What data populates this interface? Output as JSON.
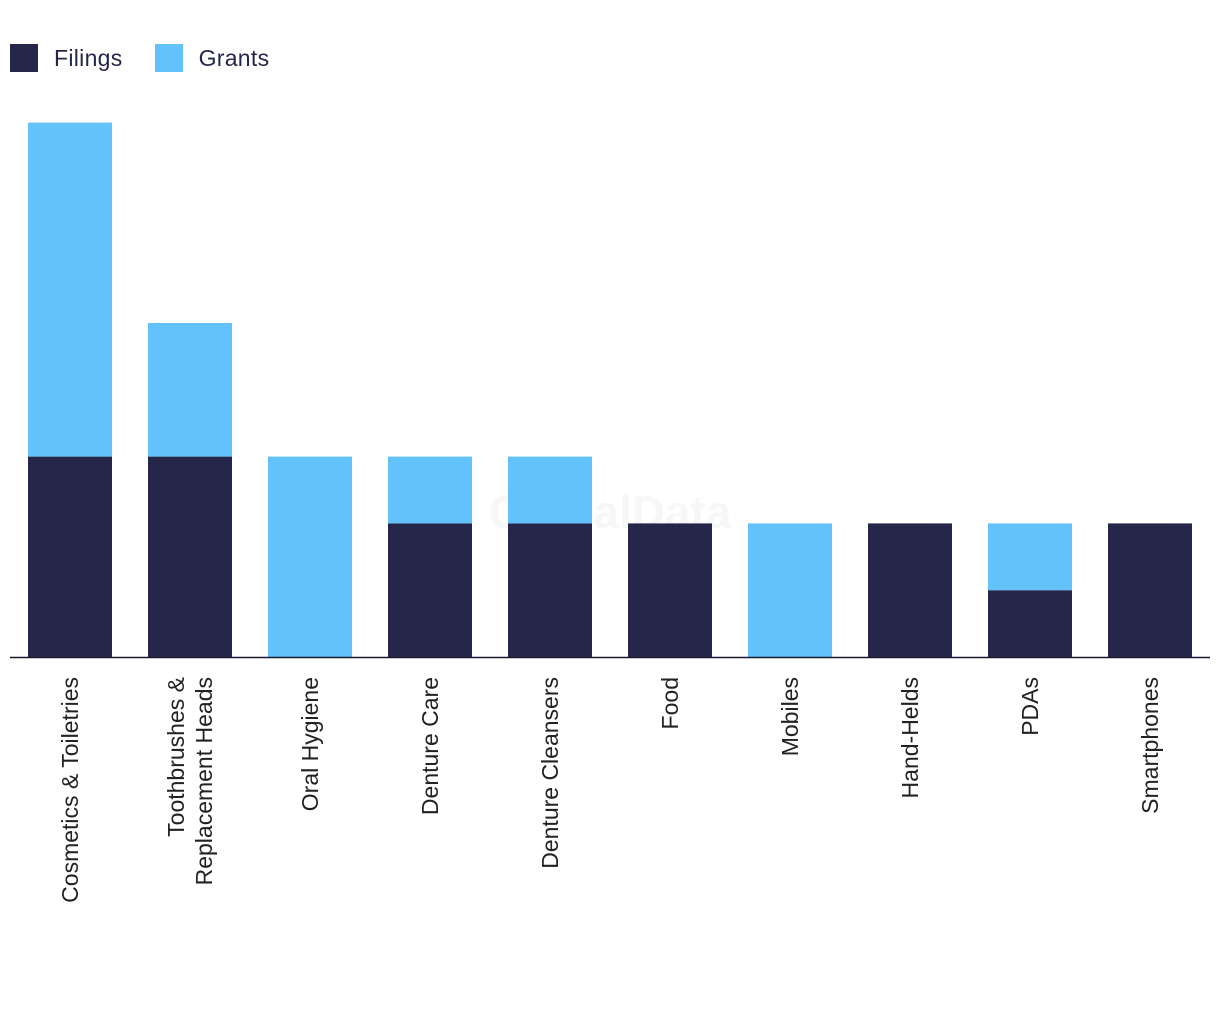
{
  "colors": {
    "filings": "#26264a",
    "grants": "#62c2f9",
    "axis": "#1a1a2e",
    "text": "#222222"
  },
  "legend": [
    {
      "label": "Filings",
      "color": "#26264a"
    },
    {
      "label": "Grants",
      "color": "#62c2f9"
    }
  ],
  "watermark": "GlobalData",
  "chart_data": {
    "type": "bar",
    "stacked": true,
    "categories": [
      "Cosmetics & Toiletries",
      "Toothbrushes & Replacement Heads",
      "Oral Hygiene",
      "Denture Care",
      "Denture Cleansers",
      "Food",
      "Mobiles",
      "Hand-Helds",
      "PDAs",
      "Smartphones"
    ],
    "category_lines": [
      [
        "Cosmetics & Toiletries"
      ],
      [
        "Toothbrushes &",
        "Replacement Heads"
      ],
      [
        "Oral Hygiene"
      ],
      [
        "Denture Care"
      ],
      [
        "Denture Cleansers"
      ],
      [
        "Food"
      ],
      [
        "Mobiles"
      ],
      [
        "Hand-Helds"
      ],
      [
        "PDAs"
      ],
      [
        "Smartphones"
      ]
    ],
    "series": [
      {
        "name": "Filings",
        "values": [
          3,
          3,
          0,
          2,
          2,
          2,
          0,
          2,
          1,
          2
        ]
      },
      {
        "name": "Grants",
        "values": [
          5,
          2,
          3,
          1,
          1,
          0,
          2,
          0,
          1,
          0
        ]
      }
    ],
    "ylim": [
      0,
      8
    ],
    "grid": false,
    "legend_position": "top-left",
    "title": "",
    "xlabel": "",
    "ylabel": ""
  }
}
